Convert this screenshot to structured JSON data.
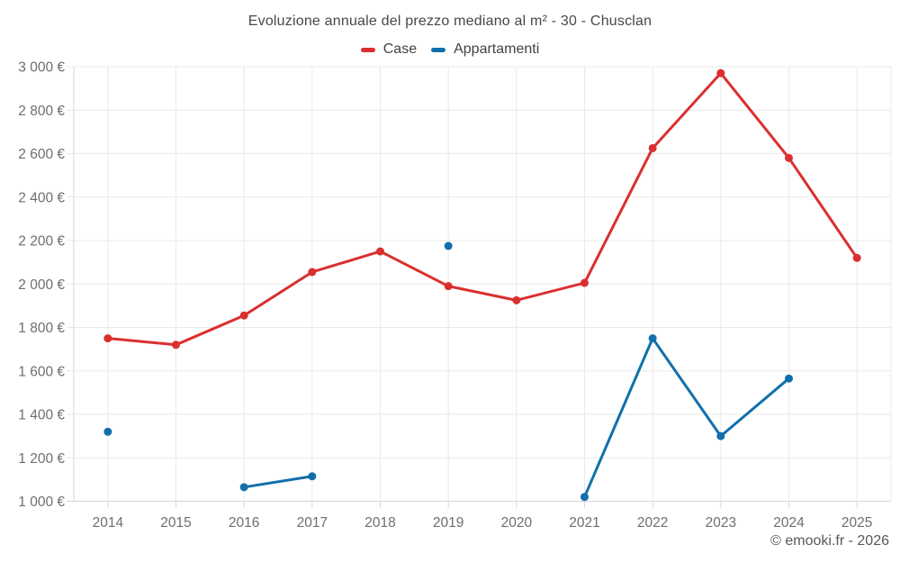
{
  "chart_data": {
    "type": "line",
    "title": "Evoluzione annuale del prezzo mediano al m² - 30 - Chusclan",
    "categories": [
      "2014",
      "2015",
      "2016",
      "2017",
      "2018",
      "2019",
      "2020",
      "2021",
      "2022",
      "2023",
      "2024",
      "2025"
    ],
    "series": [
      {
        "name": "Case",
        "color": "#db2f2f",
        "values": [
          1750,
          1720,
          1855,
          2055,
          2150,
          1990,
          1925,
          2005,
          2625,
          2970,
          2580,
          2120
        ]
      },
      {
        "name": "Appartamenti",
        "color": "#1170ab",
        "values": [
          1320,
          null,
          1065,
          1115,
          null,
          2175,
          null,
          1020,
          1750,
          1300,
          1565,
          null
        ]
      }
    ],
    "xlabel": "",
    "ylabel": "",
    "ylim": [
      1000,
      3000
    ],
    "ytick_step": 200,
    "ytick_labels": [
      "1 000 €",
      "1 200 €",
      "1 400 €",
      "1 600 €",
      "1 800 €",
      "2 000 €",
      "2 200 €",
      "2 400 €",
      "2 600 €",
      "2 800 €",
      "3 000 €"
    ],
    "grid": true,
    "legend_position": "top"
  },
  "footer": {
    "copyright": "© emooki.fr - 2026"
  },
  "style": {
    "background": "#ffffff",
    "grid_color": "#eaeaea",
    "axis_color": "#d5d5d5",
    "tick_text_color": "#6b6f72",
    "title_color": "#45484d",
    "legend_text_color": "#3f4348",
    "copyright_color": "#55585c"
  }
}
